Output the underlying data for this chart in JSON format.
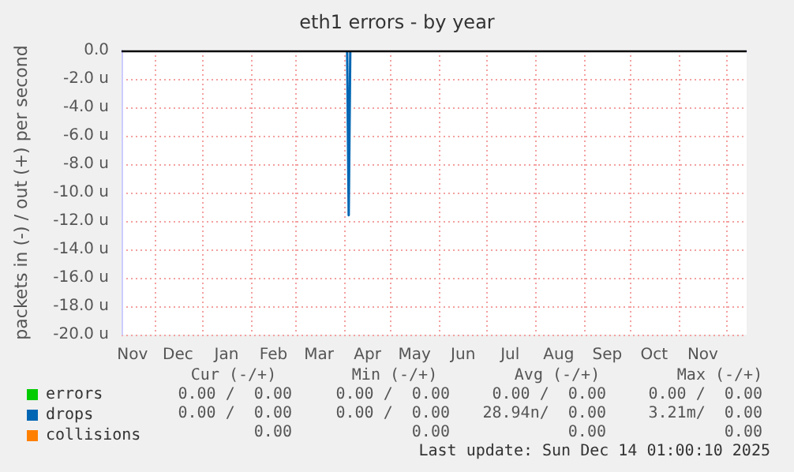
{
  "chart_data": {
    "type": "line",
    "title": "eth1 errors - by year",
    "ylabel": "packets in (-) / out (+) per second",
    "series": [
      {
        "name": "errors",
        "color": "#00cc00",
        "values": [
          null,
          null
        ]
      },
      {
        "name": "drops",
        "color": "#0066b3",
        "x": [
          "2025-04-03",
          "2025-04-04",
          "2025-04-05"
        ],
        "values": [
          0,
          -11.6,
          0
        ]
      },
      {
        "name": "collisions",
        "color": "#ff8000",
        "values": [
          null,
          null
        ]
      }
    ],
    "xlim": [
      "2024-11-10",
      "2025-12-14"
    ],
    "xticks": [
      {
        "value": "2024-12-01",
        "label": null
      },
      {
        "value": "2025-01-01",
        "label": null
      },
      {
        "value": "2025-02-01",
        "label": null
      },
      {
        "value": "2025-03-01",
        "label": null
      },
      {
        "value": "2025-04-01",
        "label": null
      },
      {
        "value": "2025-05-01",
        "label": null
      },
      {
        "value": "2025-06-01",
        "label": null
      },
      {
        "value": "2025-07-01",
        "label": null
      },
      {
        "value": "2025-08-01",
        "label": null
      },
      {
        "value": "2025-09-01",
        "label": null
      },
      {
        "value": "2025-10-01",
        "label": null
      },
      {
        "value": "2025-11-01",
        "label": null
      },
      {
        "value": "2025-12-01",
        "label": null
      },
      {
        "value": "2024-11-17",
        "label": "Nov"
      },
      {
        "value": "2024-12-16",
        "label": "Dec"
      },
      {
        "value": "2025-01-16",
        "label": "Jan"
      },
      {
        "value": "2025-02-15",
        "label": "Feb"
      },
      {
        "value": "2025-03-16",
        "label": "Mar"
      },
      {
        "value": "2025-04-16",
        "label": "Apr"
      },
      {
        "value": "2025-05-16",
        "label": "May"
      },
      {
        "value": "2025-06-16",
        "label": "Jun"
      },
      {
        "value": "2025-07-16",
        "label": "Jul"
      },
      {
        "value": "2025-08-16",
        "label": "Aug"
      },
      {
        "value": "2025-09-16",
        "label": "Sep"
      },
      {
        "value": "2025-10-16",
        "label": "Oct"
      },
      {
        "value": "2025-11-16",
        "label": "Nov"
      }
    ],
    "ylim": [
      -20,
      0
    ],
    "yticks": [
      {
        "value": -20,
        "label": "-20.0 u"
      },
      {
        "value": -18,
        "label": "-18.0 u"
      },
      {
        "value": -16,
        "label": "-16.0 u"
      },
      {
        "value": -14,
        "label": "-14.0 u"
      },
      {
        "value": -12,
        "label": "-12.0 u"
      },
      {
        "value": -10,
        "label": "-10.0 u"
      },
      {
        "value": -8,
        "label": "-8.0 u"
      },
      {
        "value": -6,
        "label": "-6.0 u"
      },
      {
        "value": -4,
        "label": "-4.0 u"
      },
      {
        "value": -2,
        "label": "-2.0 u"
      },
      {
        "value": 0,
        "label": "0.0"
      }
    ],
    "ref_lines": [
      {
        "axis": "y",
        "value": 0,
        "label": null,
        "color": "#000000"
      }
    ],
    "grid": true,
    "legend": "bottom left",
    "marker": "none",
    "line_style": "solid",
    "annotations": [
      "Cur (-/+)",
      "Min (-/+)",
      "Avg (-/+)",
      "Max (-/+)",
      "0.00 /  0.00",
      "0.00 /  0.00",
      "0.00 /  0.00",
      "0.00 /  0.00",
      "0.00 /  0.00",
      "0.00 /  0.00",
      "28.94n/  0.00",
      "3.21m/  0.00",
      "0.00",
      "0.00",
      "0.00",
      "0.00",
      "Last update: Sun Dec 14 01:00:10 2025"
    ]
  }
}
